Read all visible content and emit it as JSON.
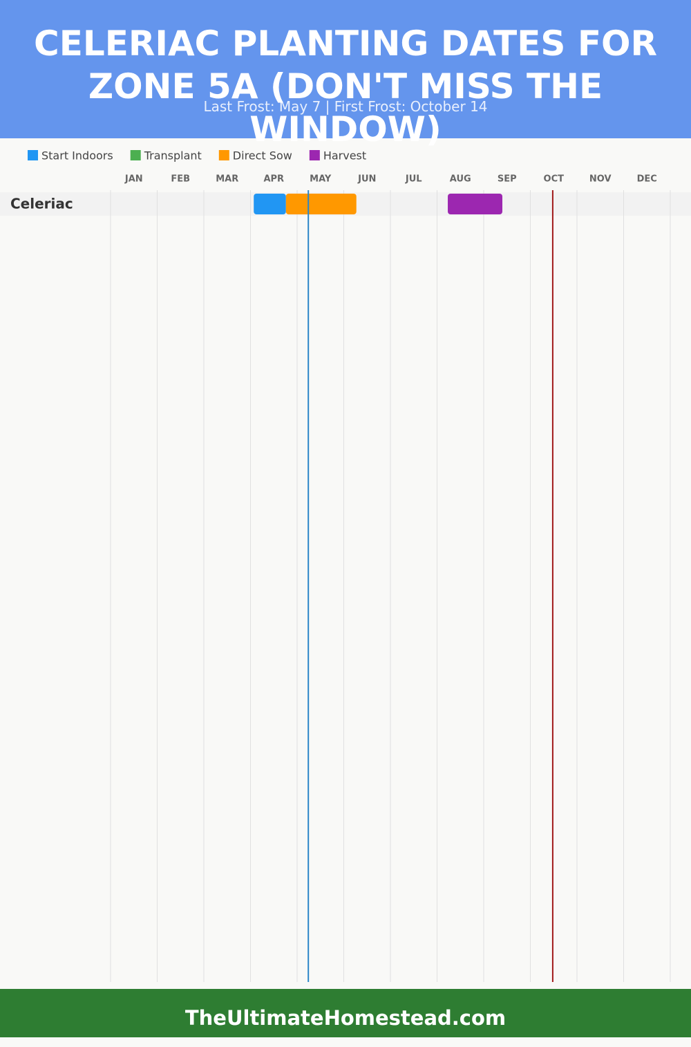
{
  "chart_data": {
    "type": "gantt",
    "title": "Celeriac Planting Dates for Zone 5A (Don't Miss the Window)",
    "subtitle": "Last Frost: May 7 | First Frost: October 14",
    "categories": [
      "Celeriac"
    ],
    "series": [
      {
        "name": "Start Indoors",
        "color": "#2196f3",
        "values": [
          [
            3.07,
            3.76
          ]
        ]
      },
      {
        "name": "Transplant",
        "color": "#4caf50",
        "values": [
          null
        ]
      },
      {
        "name": "Direct Sow",
        "color": "#ff9800",
        "values": [
          [
            3.76,
            5.27
          ]
        ]
      },
      {
        "name": "Harvest",
        "color": "#9c27b0",
        "values": [
          [
            7.23,
            8.4
          ]
        ]
      }
    ],
    "xlim": [
      0,
      12
    ],
    "xticks": [
      {
        "value": 0,
        "label": "JAN"
      },
      {
        "value": 1,
        "label": "FEB"
      },
      {
        "value": 2,
        "label": "MAR"
      },
      {
        "value": 3,
        "label": "APR"
      },
      {
        "value": 4,
        "label": "MAY"
      },
      {
        "value": 5,
        "label": "JUN"
      },
      {
        "value": 6,
        "label": "JUL"
      },
      {
        "value": 7,
        "label": "AUG"
      },
      {
        "value": 8,
        "label": "SEP"
      },
      {
        "value": 9,
        "label": "OCT"
      },
      {
        "value": 10,
        "label": "NOV"
      },
      {
        "value": 11,
        "label": "DEC"
      }
    ],
    "frost_lines": [
      {
        "value": 4.24,
        "color": "#2a86c8"
      },
      {
        "value": 9.48,
        "color": "#a01818"
      }
    ],
    "grid": true,
    "footer": "TheUltimateHomestead.com"
  }
}
